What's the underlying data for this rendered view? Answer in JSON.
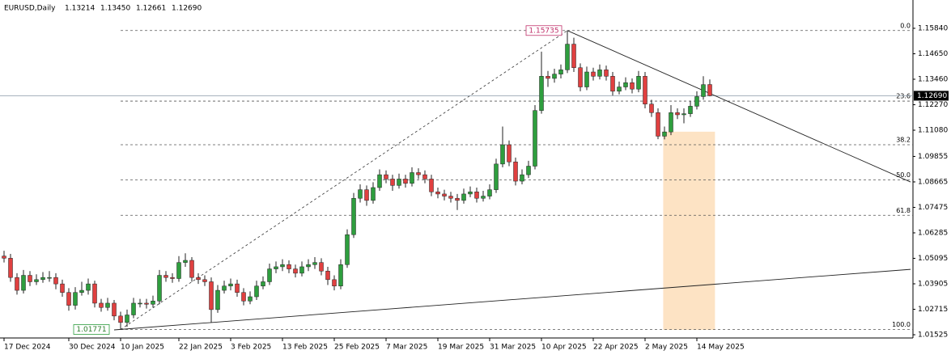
{
  "chart_data": {
    "type": "candlestick",
    "title": "EURUSD,Daily",
    "header_values": [
      "1.13214",
      "1.13450",
      "1.12661",
      "1.12690"
    ],
    "categories": [
      "17 Dec 2024",
      null,
      null,
      null,
      null,
      null,
      null,
      null,
      null,
      null,
      "30 Dec 2024",
      null,
      null,
      null,
      null,
      null,
      null,
      null,
      "10 Jan 2025",
      null,
      null,
      null,
      null,
      null,
      null,
      null,
      null,
      "22 Jan 2025",
      null,
      null,
      null,
      null,
      null,
      null,
      null,
      "3 Feb 2025",
      null,
      null,
      null,
      null,
      null,
      null,
      null,
      "13 Feb 2025",
      null,
      null,
      null,
      null,
      null,
      null,
      null,
      "25 Feb 2025",
      null,
      null,
      null,
      null,
      null,
      null,
      null,
      "7 Mar 2025",
      null,
      null,
      null,
      null,
      null,
      null,
      null,
      "19 Mar 2025",
      null,
      null,
      null,
      null,
      null,
      null,
      null,
      "31 Mar 2025",
      null,
      null,
      null,
      null,
      null,
      null,
      null,
      "10 Apr 2025",
      null,
      null,
      null,
      null,
      null,
      null,
      null,
      "22 Apr 2025",
      null,
      null,
      null,
      null,
      null,
      null,
      null,
      "2 May 2025",
      null,
      null,
      null,
      null,
      null,
      null,
      null,
      "14 May 2025",
      null,
      null
    ],
    "ohlc": [
      [
        1.052,
        1.0545,
        1.049,
        1.051
      ],
      [
        1.051,
        1.053,
        1.04,
        1.042
      ],
      [
        1.042,
        1.044,
        1.034,
        1.036
      ],
      [
        1.036,
        1.0455,
        1.0345,
        1.043
      ],
      [
        1.043,
        1.045,
        1.038,
        1.04
      ],
      [
        1.04,
        1.0435,
        1.0385,
        1.041
      ],
      [
        1.041,
        1.0445,
        1.0395,
        1.042
      ],
      [
        1.042,
        1.045,
        1.04,
        1.042
      ],
      [
        1.042,
        1.044,
        1.0365,
        1.039
      ],
      [
        1.039,
        1.041,
        1.033,
        1.035
      ],
      [
        1.035,
        1.037,
        1.0265,
        1.029
      ],
      [
        1.029,
        1.0375,
        1.027,
        1.035
      ],
      [
        1.035,
        1.04,
        1.0335,
        1.036
      ],
      [
        1.036,
        1.0415,
        1.034,
        1.039
      ],
      [
        1.039,
        1.0405,
        1.028,
        1.03
      ],
      [
        1.03,
        1.032,
        1.026,
        1.028
      ],
      [
        1.028,
        1.0325,
        1.0265,
        1.03
      ],
      [
        1.03,
        1.0315,
        1.022,
        1.024
      ],
      [
        1.024,
        1.026,
        1.0177,
        1.021
      ],
      [
        1.021,
        1.027,
        1.019,
        1.0245
      ],
      [
        1.0245,
        1.0325,
        1.023,
        1.03
      ],
      [
        1.03,
        1.032,
        1.028,
        1.03
      ],
      [
        1.03,
        1.032,
        1.0275,
        1.0295
      ],
      [
        1.0295,
        1.0335,
        1.028,
        1.031
      ],
      [
        1.031,
        1.0455,
        1.0295,
        1.043
      ],
      [
        1.043,
        1.045,
        1.04,
        1.042
      ],
      [
        1.042,
        1.044,
        1.0395,
        1.0415
      ],
      [
        1.0415,
        1.052,
        1.04,
        1.049
      ],
      [
        1.049,
        1.0533,
        1.047,
        1.05
      ],
      [
        1.05,
        1.0515,
        1.04,
        1.042
      ],
      [
        1.042,
        1.044,
        1.039,
        1.041
      ],
      [
        1.041,
        1.043,
        1.038,
        1.04
      ],
      [
        1.04,
        1.042,
        1.0211,
        1.027
      ],
      [
        1.027,
        1.0385,
        1.0255,
        1.036
      ],
      [
        1.036,
        1.0405,
        1.0345,
        1.038
      ],
      [
        1.038,
        1.0415,
        1.036,
        1.039
      ],
      [
        1.039,
        1.041,
        1.033,
        1.035
      ],
      [
        1.035,
        1.037,
        1.029,
        1.031
      ],
      [
        1.031,
        1.0355,
        1.0295,
        1.033
      ],
      [
        1.033,
        1.0405,
        1.0315,
        1.038
      ],
      [
        1.038,
        1.0425,
        1.0365,
        1.04
      ],
      [
        1.04,
        1.0485,
        1.0385,
        1.046
      ],
      [
        1.046,
        1.0495,
        1.044,
        1.047
      ],
      [
        1.047,
        1.0505,
        1.045,
        1.048
      ],
      [
        1.048,
        1.05,
        1.044,
        1.046
      ],
      [
        1.046,
        1.048,
        1.042,
        1.044
      ],
      [
        1.044,
        1.0495,
        1.0425,
        1.047
      ],
      [
        1.047,
        1.0505,
        1.045,
        1.048
      ],
      [
        1.048,
        1.0515,
        1.046,
        1.049
      ],
      [
        1.049,
        1.051,
        1.043,
        1.045
      ],
      [
        1.045,
        1.047,
        1.0385,
        1.041
      ],
      [
        1.041,
        1.043,
        1.036,
        1.038
      ],
      [
        1.038,
        1.0505,
        1.0365,
        1.048
      ],
      [
        1.048,
        1.0645,
        1.0465,
        1.062
      ],
      [
        1.062,
        1.0815,
        1.0605,
        1.079
      ],
      [
        1.079,
        1.0855,
        1.077,
        1.083
      ],
      [
        1.083,
        1.085,
        1.0755,
        1.078
      ],
      [
        1.078,
        1.0865,
        1.0765,
        1.084
      ],
      [
        1.084,
        1.0925,
        1.0825,
        1.09
      ],
      [
        1.09,
        1.092,
        1.086,
        1.088
      ],
      [
        1.088,
        1.09,
        1.0825,
        1.085
      ],
      [
        1.085,
        1.0905,
        1.0835,
        1.088
      ],
      [
        1.088,
        1.09,
        1.084,
        1.086
      ],
      [
        1.086,
        1.0935,
        1.0845,
        1.091
      ],
      [
        1.091,
        1.093,
        1.088,
        1.09
      ],
      [
        1.09,
        1.092,
        1.086,
        1.088
      ],
      [
        1.088,
        1.09,
        1.08,
        1.082
      ],
      [
        1.082,
        1.084,
        1.079,
        1.081
      ],
      [
        1.081,
        1.083,
        1.078,
        1.08
      ],
      [
        1.08,
        1.082,
        1.077,
        1.079
      ],
      [
        1.079,
        1.081,
        1.0735,
        1.078
      ],
      [
        1.078,
        1.0835,
        1.0765,
        1.081
      ],
      [
        1.081,
        1.0845,
        1.0795,
        1.082
      ],
      [
        1.082,
        1.084,
        1.077,
        1.079
      ],
      [
        1.079,
        1.0825,
        1.0775,
        1.08
      ],
      [
        1.08,
        1.0855,
        1.0785,
        1.083
      ],
      [
        1.083,
        1.0975,
        1.0815,
        1.095
      ],
      [
        1.095,
        1.1125,
        1.0935,
        1.104
      ],
      [
        1.104,
        1.106,
        1.094,
        1.096
      ],
      [
        1.096,
        1.098,
        1.085,
        1.087
      ],
      [
        1.087,
        1.0925,
        1.0855,
        1.09
      ],
      [
        1.09,
        1.0965,
        1.0885,
        1.094
      ],
      [
        1.094,
        1.1225,
        1.0925,
        1.12
      ],
      [
        1.12,
        1.1475,
        1.1185,
        1.136
      ],
      [
        1.136,
        1.1385,
        1.131,
        1.135
      ],
      [
        1.135,
        1.1395,
        1.133,
        1.137
      ],
      [
        1.137,
        1.1415,
        1.135,
        1.139
      ],
      [
        1.139,
        1.15735,
        1.1375,
        1.151
      ],
      [
        1.151,
        1.154,
        1.138,
        1.14
      ],
      [
        1.14,
        1.142,
        1.129,
        1.131
      ],
      [
        1.131,
        1.1405,
        1.1295,
        1.138
      ],
      [
        1.138,
        1.14,
        1.134,
        1.136
      ],
      [
        1.136,
        1.1415,
        1.1345,
        1.139
      ],
      [
        1.139,
        1.141,
        1.134,
        1.136
      ],
      [
        1.136,
        1.138,
        1.127,
        1.129
      ],
      [
        1.129,
        1.1335,
        1.1275,
        1.131
      ],
      [
        1.131,
        1.1355,
        1.1295,
        1.133
      ],
      [
        1.133,
        1.135,
        1.128,
        1.13
      ],
      [
        1.13,
        1.1385,
        1.1285,
        1.136
      ],
      [
        1.136,
        1.138,
        1.121,
        1.123
      ],
      [
        1.123,
        1.125,
        1.117,
        1.119
      ],
      [
        1.119,
        1.121,
        1.1066,
        1.108
      ],
      [
        1.108,
        1.1125,
        1.1065,
        1.11
      ],
      [
        1.11,
        1.1225,
        1.1085,
        1.119
      ],
      [
        1.119,
        1.121,
        1.116,
        1.118
      ],
      [
        1.118,
        1.121,
        1.114,
        1.1185
      ],
      [
        1.1185,
        1.1245,
        1.117,
        1.122
      ],
      [
        1.122,
        1.129,
        1.1205,
        1.1265
      ],
      [
        1.1265,
        1.136,
        1.125,
        1.1321
      ],
      [
        1.13214,
        1.1345,
        1.12661,
        1.1269
      ]
    ],
    "up_color": "#2e9e3e",
    "down_color": "#e04040",
    "ylim": [
      1.01374,
      1.17162
    ],
    "yticks": [
      {
        "value": 1.1584,
        "label": "1.15840"
      },
      {
        "value": 1.1465,
        "label": "1.14650"
      },
      {
        "value": 1.1346,
        "label": "1.13460"
      },
      {
        "value": 1.1227,
        "label": "1.12270"
      },
      {
        "value": 1.1108,
        "label": "1.11080"
      },
      {
        "value": 1.09855,
        "label": "1.09855"
      },
      {
        "value": 1.08665,
        "label": "1.08665"
      },
      {
        "value": 1.07475,
        "label": "1.07475"
      },
      {
        "value": 1.06285,
        "label": "1.06285"
      },
      {
        "value": 1.05095,
        "label": "1.05095"
      },
      {
        "value": 1.03905,
        "label": "1.03905"
      },
      {
        "value": 1.02715,
        "label": "1.02715"
      },
      {
        "value": 1.01525,
        "label": "1.01525"
      }
    ],
    "current_price": {
      "value": 1.1269,
      "label": "1.12690"
    },
    "fibonacci": {
      "high": 1.15735,
      "low": 1.01771,
      "high_index": 87,
      "low_index": 18,
      "end_index": 140,
      "levels": [
        {
          "label": "0.0",
          "price": 1.15735
        },
        {
          "label": "23.6",
          "price": 1.12439
        },
        {
          "label": "38.2",
          "price": 1.10401
        },
        {
          "label": "50.0",
          "price": 1.08753
        },
        {
          "label": "61.8",
          "price": 1.07105
        },
        {
          "label": "100.0",
          "price": 1.01771
        }
      ]
    },
    "trendlines": [
      {
        "from": [
          87,
          1.15735
        ],
        "to": [
          140,
          1.0866
        ]
      },
      {
        "from": [
          17,
          1.01752
        ],
        "to": [
          140,
          1.0458
        ]
      }
    ],
    "rectangle": {
      "from": [
        101.8,
        1.1101
      ],
      "to": [
        109.8,
        1.0175
      ],
      "color": "#fde3c4"
    }
  }
}
